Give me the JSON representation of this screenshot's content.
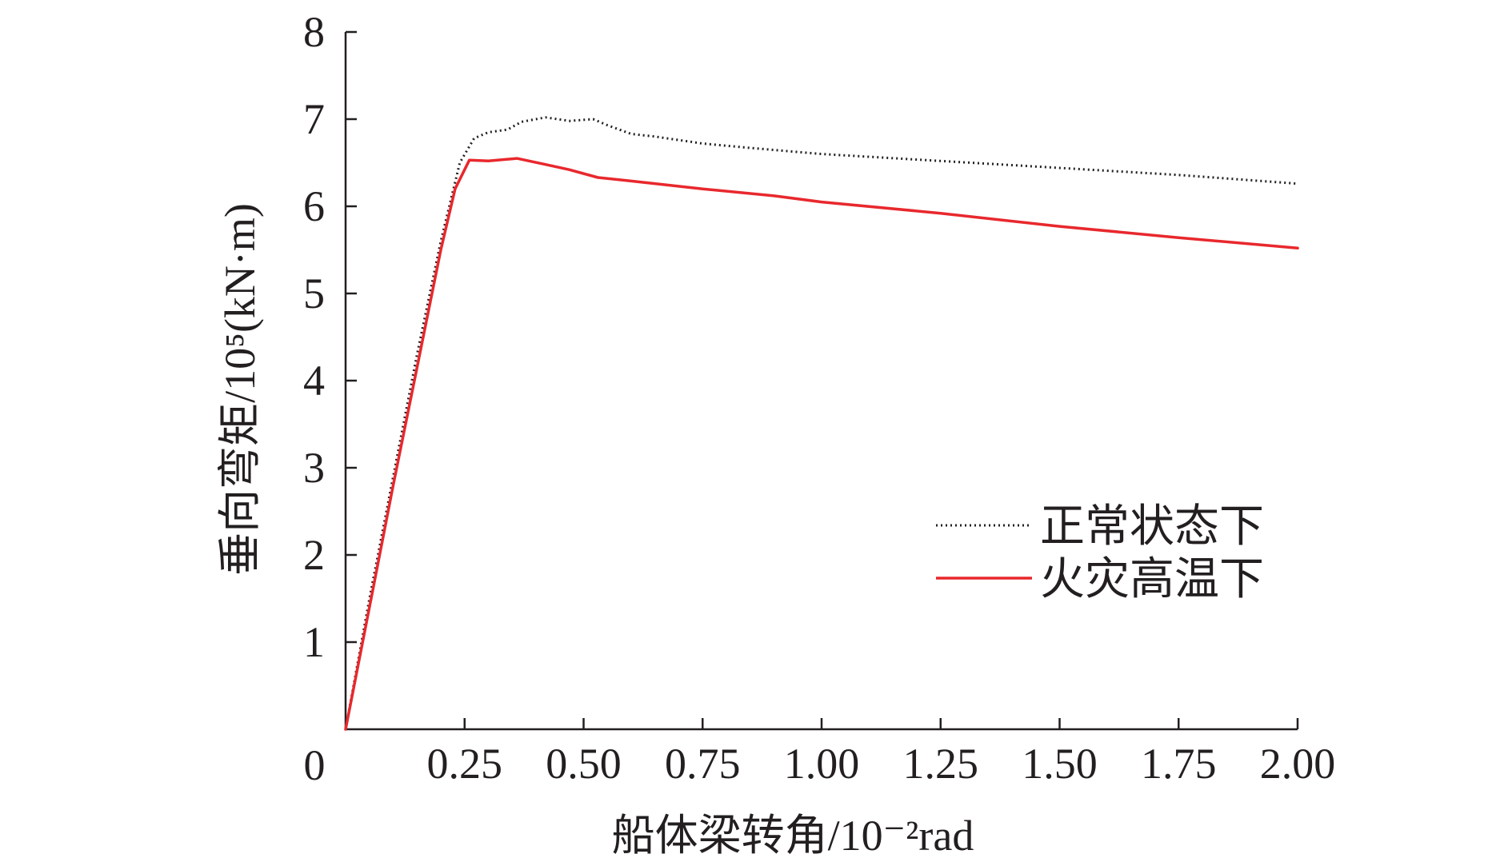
{
  "chart_data": {
    "type": "line",
    "xlabel": "船体梁转角/10⁻²rad",
    "ylabel": "垂向弯矩/10⁵(kN·m)",
    "xlim": [
      0,
      2.0
    ],
    "ylim": [
      0,
      8
    ],
    "origin_label": "0",
    "x_ticks": [
      0.25,
      0.5,
      0.75,
      1.0,
      1.25,
      1.5,
      1.75,
      2.0
    ],
    "x_tick_labels": [
      "0.25",
      "0.50",
      "0.75",
      "1.00",
      "1.25",
      "1.50",
      "1.75",
      "2.00"
    ],
    "y_ticks": [
      1,
      2,
      3,
      4,
      5,
      6,
      7,
      8
    ],
    "y_tick_labels": [
      "1",
      "2",
      "3",
      "4",
      "5",
      "6",
      "7",
      "8"
    ],
    "grid": false,
    "legend_position": "lower-right",
    "series": [
      {
        "name": "正常状态下",
        "color": "#231f20",
        "style": "dotted",
        "points": [
          [
            0,
            0
          ],
          [
            0.05,
            1.5
          ],
          [
            0.1,
            2.9
          ],
          [
            0.15,
            4.3
          ],
          [
            0.2,
            5.6
          ],
          [
            0.24,
            6.5
          ],
          [
            0.27,
            6.78
          ],
          [
            0.3,
            6.85
          ],
          [
            0.34,
            6.88
          ],
          [
            0.37,
            6.97
          ],
          [
            0.42,
            7.02
          ],
          [
            0.47,
            6.98
          ],
          [
            0.52,
            7.0
          ],
          [
            0.55,
            6.93
          ],
          [
            0.6,
            6.83
          ],
          [
            0.65,
            6.8
          ],
          [
            0.75,
            6.72
          ],
          [
            0.85,
            6.67
          ],
          [
            1.0,
            6.6
          ],
          [
            1.25,
            6.52
          ],
          [
            1.5,
            6.44
          ],
          [
            1.75,
            6.36
          ],
          [
            2.0,
            6.26
          ]
        ]
      },
      {
        "name": "火灾高温下",
        "color": "#e8282d",
        "style": "solid",
        "points": [
          [
            0,
            0
          ],
          [
            0.05,
            1.4
          ],
          [
            0.1,
            2.8
          ],
          [
            0.15,
            4.15
          ],
          [
            0.2,
            5.5
          ],
          [
            0.23,
            6.2
          ],
          [
            0.26,
            6.53
          ],
          [
            0.3,
            6.52
          ],
          [
            0.36,
            6.55
          ],
          [
            0.42,
            6.48
          ],
          [
            0.47,
            6.42
          ],
          [
            0.53,
            6.33
          ],
          [
            0.6,
            6.29
          ],
          [
            0.75,
            6.2
          ],
          [
            0.9,
            6.12
          ],
          [
            1.0,
            6.05
          ],
          [
            1.25,
            5.92
          ],
          [
            1.5,
            5.77
          ],
          [
            1.75,
            5.64
          ],
          [
            2.0,
            5.52
          ]
        ]
      }
    ]
  }
}
